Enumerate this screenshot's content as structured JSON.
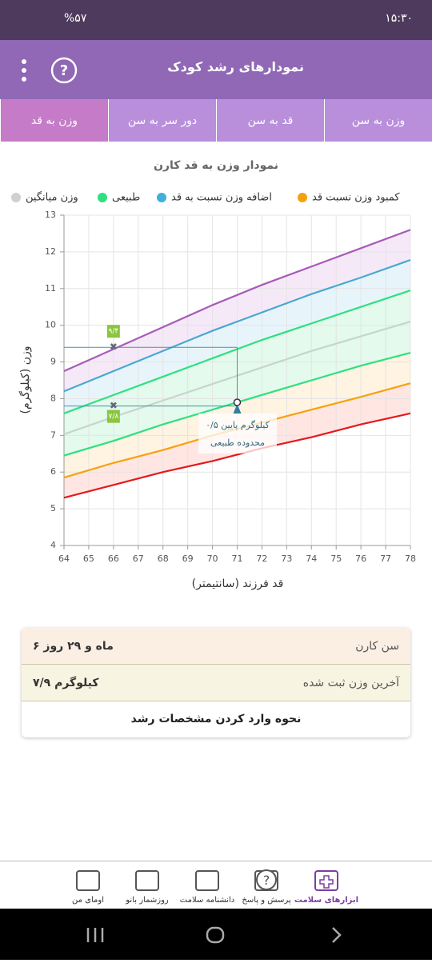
{
  "status_bar": {
    "time": "۱۵:۳۰",
    "battery": "%۵۷"
  },
  "header": {
    "title": "نمودارهای رشد کودک"
  },
  "tabs": [
    "وزن به سن",
    "قد به سن",
    "دور سر به سن",
    "وزن به قد"
  ],
  "chart_data": {
    "type": "line",
    "title": "نمودار وزن به قد کارن",
    "legend": [
      {
        "label": "کمبود وزن نسبت قد",
        "color": "#f5a10c"
      },
      {
        "label": "اضافه وزن نسبت به قد",
        "color": "#3fb0d8"
      },
      {
        "label": "طبیعی",
        "color": "#2ee07f"
      },
      {
        "label": "وزن میانگین",
        "color": "#d0d0d0"
      }
    ],
    "x": [
      64,
      66,
      68,
      70,
      72,
      74,
      76,
      78
    ],
    "series": [
      {
        "color": "#a75bb8",
        "values": [
          8.75,
          9.35,
          9.95,
          10.55,
          11.1,
          11.6,
          12.1,
          12.6
        ]
      },
      {
        "color": "#4aa8d0",
        "values": [
          8.2,
          8.75,
          9.3,
          9.85,
          10.35,
          10.85,
          11.3,
          11.78
        ]
      },
      {
        "color": "#2ee07f",
        "values": [
          7.6,
          8.1,
          8.6,
          9.1,
          9.6,
          10.05,
          10.5,
          10.95
        ]
      },
      {
        "color": "#c8d4cc",
        "values": [
          7.03,
          7.5,
          7.95,
          8.4,
          8.85,
          9.3,
          9.7,
          10.1
        ]
      },
      {
        "color": "#2ee07f",
        "values": [
          6.45,
          6.85,
          7.3,
          7.7,
          8.1,
          8.5,
          8.9,
          9.25
        ]
      },
      {
        "color": "#f5a10c",
        "values": [
          5.85,
          6.25,
          6.6,
          7.0,
          7.35,
          7.7,
          8.05,
          8.42
        ]
      },
      {
        "color": "#e3191c",
        "values": [
          5.3,
          5.65,
          6.0,
          6.3,
          6.65,
          6.95,
          7.3,
          7.6
        ]
      }
    ],
    "band_colors": [
      "#f2e3f6",
      "#e1f2fa",
      "#dcf9e8",
      "#dcf9e8",
      "#fff0d9",
      "#ffe0dc"
    ],
    "xlim": [
      64,
      78
    ],
    "ylim": [
      4,
      13
    ],
    "xticks": [
      64,
      65,
      66,
      67,
      68,
      69,
      70,
      71,
      72,
      73,
      74,
      75,
      76,
      77,
      78
    ],
    "yticks": [
      4,
      5,
      6,
      7,
      8,
      9,
      10,
      11,
      12,
      13
    ],
    "grid": true,
    "xlabel": "قد فرزند (سانتیمتر)",
    "ylabel": "وزن (کیلوگرم)",
    "points": [
      {
        "x": 66,
        "y": 9.4,
        "label": "۹/۴"
      },
      {
        "x": 66,
        "y": 7.8,
        "label": "۷/۸"
      }
    ],
    "current": {
      "x": 71,
      "y": 7.9
    },
    "annotation": [
      "۰/۵ کیلوگرم پایین",
      "محدوده طبیعی"
    ]
  },
  "info": {
    "rows": [
      [
        "سن کارن",
        "۶ ماه و ۲۹ روز"
      ],
      [
        "آخرین وزن ثبت شده",
        "۷/۹ کیلوگرم"
      ]
    ],
    "link": "نحوه وارد کردن مشخصات رشد"
  },
  "bottom_nav": [
    "ابزارهای سلامت",
    "پرسش و پاسخ",
    "دانشنامه سلامت",
    "روزشمار بانو",
    "اومای من"
  ]
}
